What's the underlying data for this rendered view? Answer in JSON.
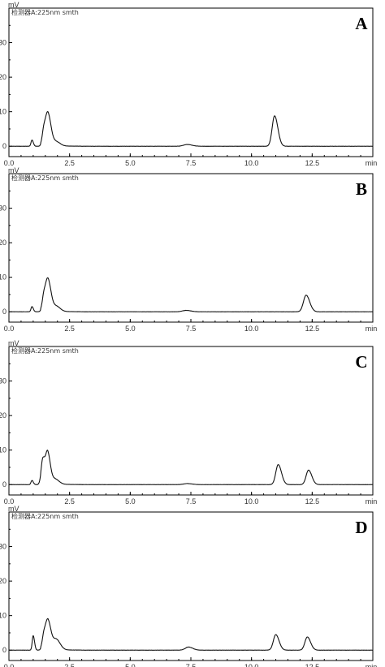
{
  "figure": {
    "background": "#ffffff",
    "trace_color": "#111111"
  },
  "chart_data": [
    {
      "type": "line",
      "panel_label": "A",
      "unit": "mV",
      "detector": "检测器A:225nm smth",
      "x_unit": "min",
      "xlim": [
        0,
        15
      ],
      "ylim": [
        -3,
        40
      ],
      "x_ticks": [
        "0.0",
        "2.5",
        "5.0",
        "7.5",
        "10.0",
        "12.5"
      ],
      "y_ticks": [
        "0",
        "10",
        "20",
        "30"
      ],
      "series": [
        {
          "peaks": [
            {
              "rt": 0.95,
              "height": 1.8,
              "width": 0.04
            },
            {
              "rt": 1.45,
              "height": 5.0,
              "width": 0.07
            },
            {
              "rt": 1.62,
              "height": 8.6,
              "width": 0.09
            },
            {
              "rt": 1.95,
              "height": 1.2,
              "width": 0.12
            },
            {
              "rt": 7.35,
              "height": 0.5,
              "width": 0.15
            },
            {
              "rt": 10.95,
              "height": 8.8,
              "width": 0.1
            }
          ]
        }
      ]
    },
    {
      "type": "line",
      "panel_label": "B",
      "unit": "mV",
      "detector": "检测器A:225nm smth",
      "x_unit": "min",
      "xlim": [
        0,
        15
      ],
      "ylim": [
        -3,
        40
      ],
      "x_ticks": [
        "0.0",
        "2.5",
        "5.0",
        "7.5",
        "10.0",
        "12.5"
      ],
      "y_ticks": [
        "0",
        "10",
        "20",
        "30"
      ],
      "series": [
        {
          "peaks": [
            {
              "rt": 0.95,
              "height": 1.5,
              "width": 0.04
            },
            {
              "rt": 1.45,
              "height": 4.8,
              "width": 0.07
            },
            {
              "rt": 1.62,
              "height": 8.5,
              "width": 0.09
            },
            {
              "rt": 1.95,
              "height": 1.5,
              "width": 0.12
            },
            {
              "rt": 7.3,
              "height": 0.4,
              "width": 0.15
            },
            {
              "rt": 12.25,
              "height": 4.8,
              "width": 0.11
            }
          ]
        }
      ]
    },
    {
      "type": "line",
      "panel_label": "C",
      "unit": "mV",
      "detector": "检测器A:225nm smth",
      "x_unit": "min",
      "xlim": [
        0,
        15
      ],
      "ylim": [
        -3,
        40
      ],
      "x_ticks": [
        "0.0",
        "2.5",
        "5.0",
        "7.5",
        "10.0",
        "12.5"
      ],
      "y_ticks": [
        "0",
        "10",
        "20",
        "30"
      ],
      "series": [
        {
          "peaks": [
            {
              "rt": 0.95,
              "height": 1.2,
              "width": 0.04
            },
            {
              "rt": 1.4,
              "height": 7.2,
              "width": 0.07
            },
            {
              "rt": 1.6,
              "height": 8.8,
              "width": 0.08
            },
            {
              "rt": 1.9,
              "height": 1.5,
              "width": 0.12
            },
            {
              "rt": 7.35,
              "height": 0.3,
              "width": 0.15
            },
            {
              "rt": 11.1,
              "height": 5.8,
              "width": 0.1
            },
            {
              "rt": 12.35,
              "height": 4.2,
              "width": 0.1
            }
          ]
        }
      ]
    },
    {
      "type": "line",
      "panel_label": "D",
      "unit": "mV",
      "detector": "检测器A:225nm smth",
      "x_unit": "min",
      "xlim": [
        0,
        15
      ],
      "ylim": [
        -3,
        40
      ],
      "x_ticks": [
        "0.0",
        "2.5",
        "5.0",
        "7.5",
        "10.0",
        "12.5"
      ],
      "y_ticks": [
        "0",
        "10",
        "20",
        "30"
      ],
      "series": [
        {
          "peaks": [
            {
              "rt": 1.0,
              "height": 4.2,
              "width": 0.04
            },
            {
              "rt": 1.45,
              "height": 4.5,
              "width": 0.07
            },
            {
              "rt": 1.62,
              "height": 7.8,
              "width": 0.09
            },
            {
              "rt": 1.95,
              "height": 3.0,
              "width": 0.12
            },
            {
              "rt": 7.4,
              "height": 0.9,
              "width": 0.13
            },
            {
              "rt": 11.0,
              "height": 4.5,
              "width": 0.1
            },
            {
              "rt": 12.3,
              "height": 3.8,
              "width": 0.1
            }
          ]
        }
      ]
    }
  ]
}
